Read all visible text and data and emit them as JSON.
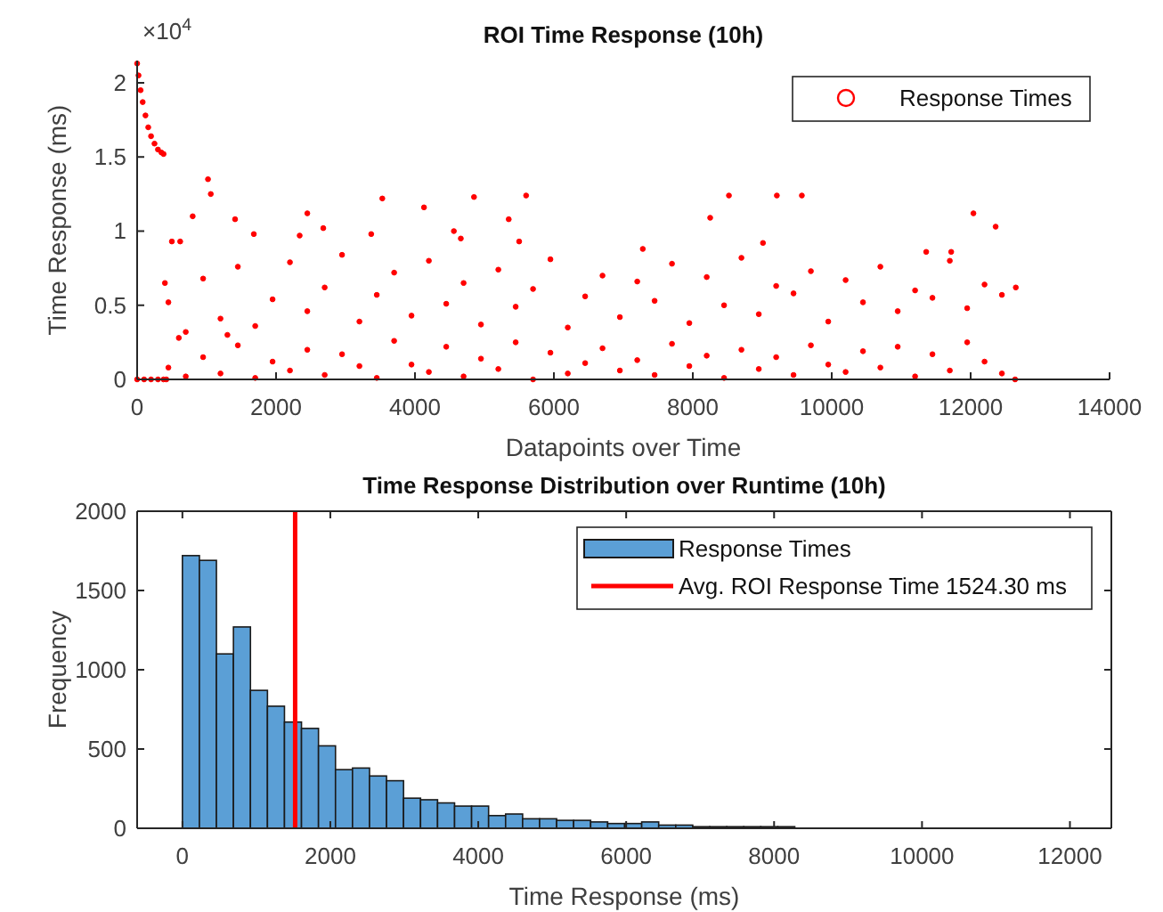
{
  "chart_data": [
    {
      "type": "scatter",
      "title": "ROI Time Response (10h)",
      "xlabel": "Datapoints over Time",
      "ylabel": "Time Response (ms)",
      "annotations": [
        "×10$^{4}$"
      ],
      "legend": "top right",
      "marker": "circle",
      "grid": false,
      "xlim": [
        0,
        14000
      ],
      "xticks": [
        0,
        2000,
        4000,
        6000,
        8000,
        10000,
        12000,
        14000
      ],
      "ylim": [
        0,
        2.15
      ],
      "yticks": [
        0,
        0.5,
        1,
        1.5,
        2
      ],
      "series": [
        {
          "name": "Response Times",
          "color": "#ff0000",
          "x": [
            0,
            20,
            50,
            80,
            120,
            160,
            200,
            250,
            300,
            350,
            380,
            0,
            100,
            200,
            300,
            380,
            400,
            420,
            450,
            450,
            600,
            700,
            700,
            950,
            950,
            1200,
            1200,
            1300,
            1450,
            1450,
            1700,
            1700,
            1950,
            1950,
            2200,
            2200,
            2450,
            2450,
            2700,
            2700,
            2950,
            2950,
            3200,
            3200,
            3450,
            3450,
            3700,
            3700,
            3950,
            3950,
            4200,
            4200,
            4450,
            4450,
            4700,
            4700,
            4950,
            4950,
            5200,
            5200,
            5450,
            5450,
            5700,
            5700,
            5950,
            5950,
            6200,
            6200,
            6450,
            6450,
            6700,
            6700,
            6950,
            6950,
            7200,
            7200,
            7450,
            7450,
            7700,
            7700,
            7950,
            7950,
            8200,
            8200,
            8450,
            8450,
            8700,
            8700,
            8950,
            8950,
            9200,
            9200,
            9450,
            9450,
            9700,
            9700,
            9950,
            9950,
            10200,
            10200,
            10450,
            10450,
            10700,
            10700,
            10950,
            10950,
            11200,
            11200,
            11450,
            11450,
            11700,
            11700,
            11950,
            11950,
            12200,
            12200,
            12450,
            12450,
            12650,
            12640,
            500,
            620,
            800,
            1020,
            1060,
            1410,
            1680,
            2340,
            2450,
            2680,
            3370,
            3530,
            4130,
            4560,
            4660,
            4850,
            5350,
            5500,
            5600,
            7280,
            8250,
            8520,
            9010,
            9210,
            9570,
            11360,
            11720,
            12040,
            12360
          ],
          "values": [
            2.13,
            2.05,
            1.95,
            1.87,
            1.78,
            1.7,
            1.64,
            1.59,
            1.55,
            1.53,
            1.52,
            0,
            0,
            0,
            0,
            0,
            0.65,
            0,
            0.52,
            0.08,
            0.28,
            0.32,
            0.02,
            0.68,
            0.15,
            0.41,
            0.04,
            0.3,
            0.76,
            0.23,
            0.36,
            0.01,
            0.54,
            0.12,
            0.79,
            0.06,
            0.46,
            0.2,
            0.62,
            0.03,
            0.84,
            0.17,
            0.39,
            0.09,
            0.57,
            0.01,
            0.72,
            0.26,
            0.43,
            0.1,
            0.8,
            0.05,
            0.51,
            0.22,
            0.65,
            0.02,
            0.37,
            0.14,
            0.74,
            0.07,
            0.49,
            0.25,
            0.61,
            0,
            0.81,
            0.18,
            0.35,
            0.04,
            0.56,
            0.11,
            0.7,
            0.21,
            0.42,
            0.06,
            0.66,
            0.13,
            0.53,
            0.03,
            0.78,
            0.24,
            0.38,
            0.09,
            0.69,
            0.16,
            0.5,
            0.01,
            0.82,
            0.2,
            0.44,
            0.07,
            0.63,
            0.15,
            0.58,
            0.03,
            0.73,
            0.23,
            0.39,
            0.1,
            0.67,
            0.05,
            0.52,
            0.19,
            0.76,
            0.08,
            0.46,
            0.22,
            0.6,
            0.02,
            0.55,
            0.17,
            0.8,
            0.06,
            0.48,
            0.25,
            0.64,
            0.12,
            0.57,
            0.04,
            0.62,
            0,
            0.93,
            0.93,
            1.1,
            1.35,
            1.25,
            1.08,
            0.98,
            0.97,
            1.12,
            1.02,
            0.98,
            1.22,
            1.16,
            1.0,
            0.95,
            1.23,
            1.08,
            0.93,
            1.24,
            0.88,
            1.09,
            1.24,
            0.92,
            1.24,
            1.24,
            0.86,
            0.86,
            1.12,
            1.03
          ]
        }
      ]
    },
    {
      "type": "histogram",
      "title": "Time Response Distribution over Runtime (10h)",
      "xlabel": "Time Response (ms)",
      "ylabel": "Frequency",
      "legend": "top right",
      "grid": false,
      "xlim": [
        -612,
        12560
      ],
      "xticks": [
        0,
        2000,
        4000,
        6000,
        8000,
        10000,
        12000
      ],
      "ylim": [
        0,
        2000
      ],
      "yticks": [
        0,
        500,
        1000,
        1500,
        2000
      ],
      "bins": [
        0,
        230,
        460,
        690,
        920,
        1150,
        1380,
        1610,
        1840,
        2070,
        2300,
        2530,
        2760,
        2990,
        3220,
        3450,
        3680,
        3910,
        4140,
        4370,
        4600,
        4830,
        5060,
        5290,
        5520,
        5750,
        5980,
        6210,
        6440,
        6670,
        6900,
        7130,
        7360,
        7590,
        7820,
        8050,
        8280
      ],
      "series": [
        {
          "name": "Response Times",
          "color": "#5b9fd6",
          "values": [
            1720,
            1690,
            1100,
            1270,
            870,
            770,
            670,
            630,
            520,
            370,
            380,
            330,
            300,
            190,
            180,
            160,
            140,
            140,
            80,
            90,
            60,
            60,
            50,
            50,
            40,
            30,
            30,
            40,
            20,
            20,
            10,
            10,
            10,
            10,
            10,
            10
          ]
        },
        {
          "type": "line",
          "name": "Avg. ROI Response Time 1524.30 ms",
          "color": "#ff0000",
          "x": [
            1524.3,
            1524.3
          ],
          "values": [
            0,
            2000
          ]
        }
      ]
    }
  ]
}
